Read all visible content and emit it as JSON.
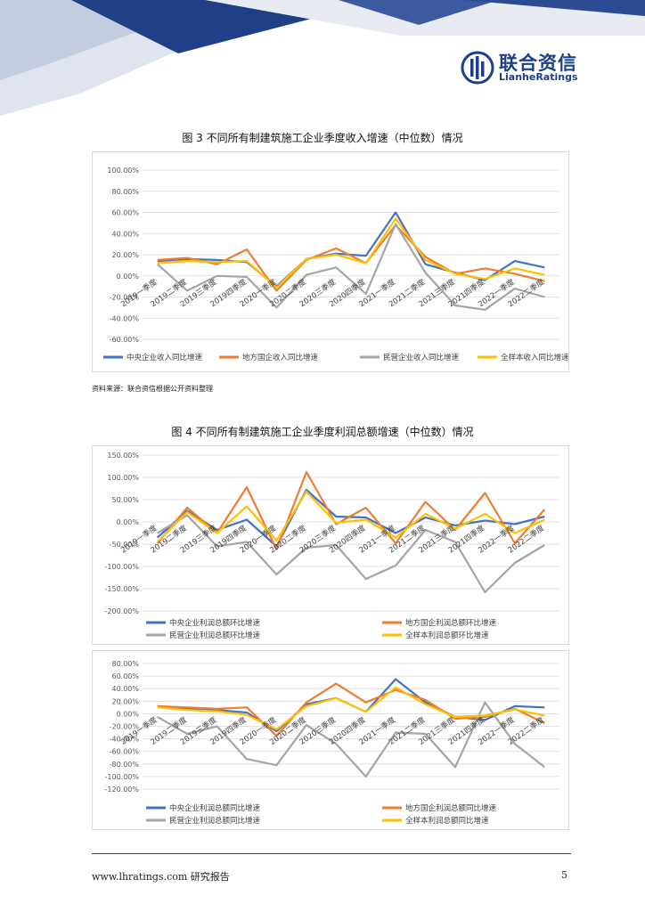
{
  "header": {
    "logo_cn": "联合资信",
    "logo_en": "LianheRatings"
  },
  "figures": [
    {
      "title": "图 3    不同所有制建筑施工企业季度收入增速（中位数）情况"
    },
    {
      "title": "图 4    不同所有制建筑施工企业季度利润总额增速（中位数）情况"
    }
  ],
  "source": "资料来源：联合资信根据公开资料整理",
  "footer": {
    "left": "www.lhratings.com    研究报告",
    "page": "5"
  },
  "colors": {
    "central": "#4472c4",
    "local": "#ed7d31",
    "private": "#a5a5a5",
    "all": "#ffc000"
  },
  "chart_data": [
    {
      "type": "line",
      "categories": [
        "2019一季度",
        "2019二季度",
        "2019三季度",
        "2019四季度",
        "2020一季度",
        "2020二季度",
        "2020三季度",
        "2020四季度",
        "2021一季度",
        "2021二季度",
        "2021三季度",
        "2021四季度",
        "2022一季度",
        "2022二季度"
      ],
      "ylim": [
        -60,
        100
      ],
      "yticks": [
        -60,
        -40,
        -20,
        0,
        20,
        40,
        60,
        80,
        100
      ],
      "tick_labels": [
        "-60.00%",
        "-40.00%",
        "-20.00%",
        "0.00%",
        "20.00%",
        "40.00%",
        "60.00%",
        "80.00%",
        "100.00%"
      ],
      "legend_position": "bottom",
      "series": [
        {
          "name": "中央企业收入同比增速",
          "key": "central",
          "values": [
            14,
            16,
            15,
            13,
            -10,
            16,
            21,
            19,
            60,
            11,
            3,
            -4,
            14,
            8
          ]
        },
        {
          "name": "地方国企收入同比增速",
          "key": "local",
          "values": [
            15,
            17,
            11,
            25,
            -14,
            15,
            26,
            12,
            48,
            18,
            2,
            7,
            2,
            -5
          ]
        },
        {
          "name": "民营企业收入同比增速",
          "key": "private",
          "values": [
            11,
            -14,
            0,
            -1,
            -30,
            1,
            8,
            -17,
            49,
            3,
            -28,
            -32,
            -12,
            -20
          ]
        },
        {
          "name": "全样本收入同比增速",
          "key": "all",
          "values": [
            12,
            14,
            13,
            14,
            -11,
            16,
            20,
            12,
            54,
            15,
            2,
            -3,
            7,
            1
          ]
        }
      ]
    },
    {
      "type": "line",
      "categories": [
        "2019一季度",
        "2019二季度",
        "2019三季度",
        "2019四季度",
        "2020一季度",
        "2020二季度",
        "2020三季度",
        "2020四季度",
        "2021一季度",
        "2021二季度",
        "2021三季度",
        "2021四季度",
        "2022一季度",
        "2022二季度"
      ],
      "ylim": [
        -200,
        150
      ],
      "yticks": [
        -200,
        -150,
        -100,
        -50,
        0,
        50,
        100,
        150
      ],
      "tick_labels": [
        "-200.00%",
        "-150.00%",
        "-100.00%",
        "-50.00%",
        "0.00%",
        "50.00%",
        "100.00%",
        "150.00%"
      ],
      "legend_position": "bottom",
      "series": [
        {
          "name": "中央企业利润总额环比增速",
          "key": "central",
          "values": [
            -35,
            25,
            -18,
            5,
            -55,
            72,
            12,
            10,
            -25,
            10,
            -8,
            3,
            -5,
            12
          ]
        },
        {
          "name": "地方国企利润总额环比增速",
          "key": "local",
          "values": [
            -48,
            32,
            -25,
            78,
            -62,
            112,
            -5,
            32,
            -48,
            45,
            -18,
            65,
            -48,
            28
          ]
        },
        {
          "name": "民营企业利润总额环比增速",
          "key": "private",
          "values": [
            -25,
            15,
            -55,
            -45,
            -118,
            -58,
            -52,
            -128,
            -98,
            -18,
            -45,
            -158,
            -92,
            -52
          ]
        },
        {
          "name": "全样本利润总额环比增速",
          "key": "all",
          "values": [
            -45,
            22,
            -25,
            35,
            -42,
            68,
            -2,
            5,
            -35,
            18,
            -15,
            18,
            -25,
            5
          ]
        }
      ]
    },
    {
      "type": "line",
      "categories": [
        "2019一季度",
        "2019二季度",
        "2019三季度",
        "2019四季度",
        "2020一季度",
        "2020二季度",
        "2020三季度",
        "2020四季度",
        "2021一季度",
        "2021二季度",
        "2021三季度",
        "2021四季度",
        "2022一季度",
        "2022二季度"
      ],
      "ylim": [
        -120,
        80
      ],
      "yticks": [
        -120,
        -100,
        -80,
        -60,
        -40,
        -20,
        0,
        20,
        40,
        60,
        80
      ],
      "tick_labels": [
        "-120.00%",
        "-100.00%",
        "-80.00%",
        "-60.00%",
        "-40.00%",
        "-20.00%",
        "0.00%",
        "20.00%",
        "40.00%",
        "60.00%",
        "80.00%"
      ],
      "legend_position": "bottom",
      "series": [
        {
          "name": "中央企业利润总额同比增速",
          "key": "central",
          "values": [
            12,
            8,
            6,
            2,
            -28,
            15,
            25,
            3,
            55,
            18,
            -5,
            -10,
            12,
            10
          ]
        },
        {
          "name": "地方国企利润总额同比增速",
          "key": "local",
          "values": [
            12,
            10,
            8,
            10,
            -35,
            18,
            48,
            18,
            38,
            22,
            -8,
            -5,
            8,
            -15
          ]
        },
        {
          "name": "民营企业利润总额同比增速",
          "key": "private",
          "values": [
            -5,
            -32,
            -20,
            -72,
            -82,
            -18,
            -48,
            -100,
            -30,
            -32,
            -85,
            18,
            -48,
            -85
          ]
        },
        {
          "name": "全样本利润总额同比增速",
          "key": "all",
          "values": [
            10,
            6,
            4,
            -2,
            -25,
            12,
            25,
            3,
            42,
            15,
            -5,
            -3,
            7,
            -3
          ]
        }
      ]
    }
  ]
}
